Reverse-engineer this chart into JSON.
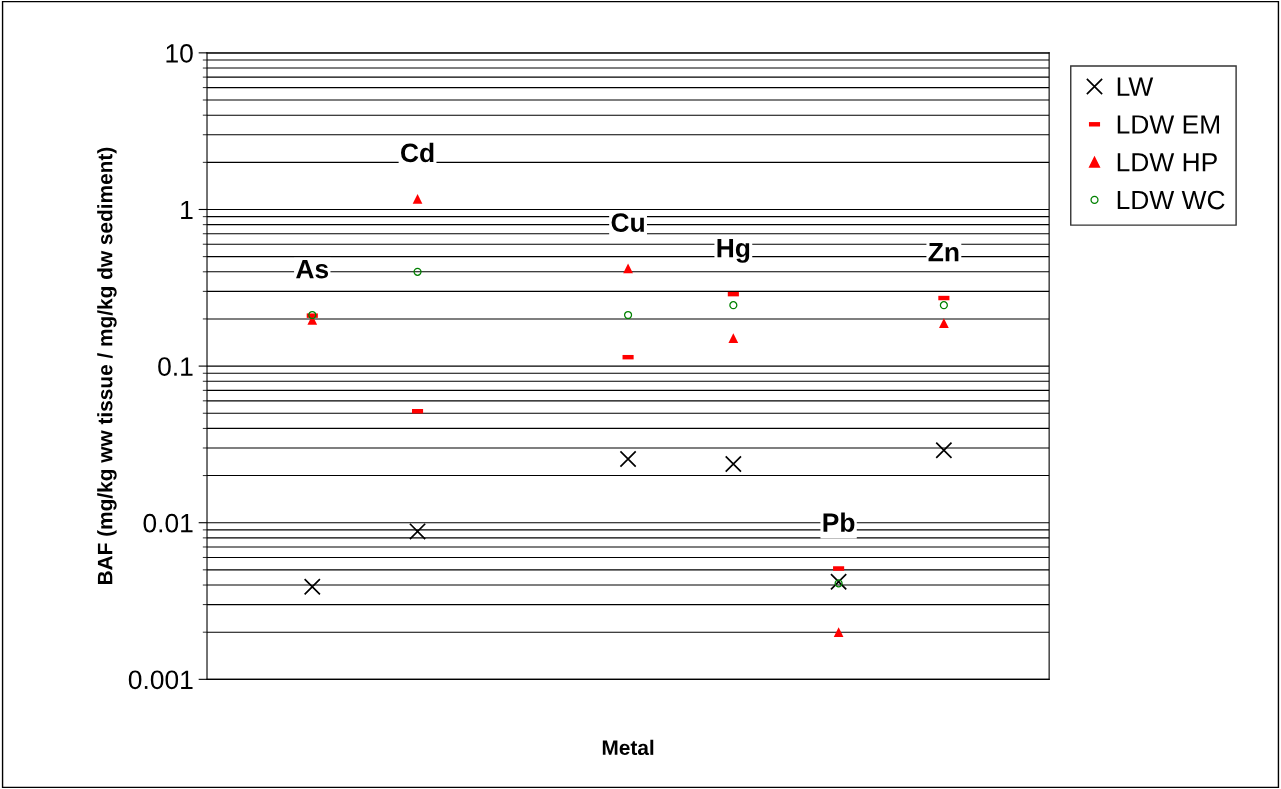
{
  "chart_data": {
    "type": "scatter",
    "xlabel": "Metal",
    "ylabel": "BAF (mg/kg ww tissue / mg/kg dw sediment)",
    "categories": [
      "As",
      "Cd",
      null,
      "Cu",
      "Hg",
      "Pb",
      "Zn"
    ],
    "series": [
      {
        "name": "LW",
        "color": "#000000",
        "marker": "cross",
        "values": [
          0.0039,
          0.0088,
          null,
          0.0255,
          0.0237,
          0.0042,
          0.029
        ]
      },
      {
        "name": "LDW EM",
        "color": "#ff0000",
        "values": [
          0.21,
          0.0515,
          null,
          0.114,
          0.288,
          0.0051,
          0.272
        ]
      },
      {
        "name": "LDW HP",
        "color": "#ff0000",
        "marker": "triangle",
        "values": [
          0.197,
          1.17,
          null,
          0.42,
          0.151,
          0.002,
          0.188
        ]
      },
      {
        "name": "LDW WC",
        "color": "#008000",
        "marker": "circle",
        "values": [
          0.212,
          0.4,
          null,
          0.212,
          0.245,
          0.0041,
          0.245
        ]
      }
    ],
    "log": "y",
    "ylim": [
      0.001,
      10
    ],
    "yticks": [
      {
        "value": 0.001,
        "label": "0.001"
      },
      {
        "value": 0.01,
        "label": "0.01"
      },
      {
        "value": 0.1,
        "label": "0.1"
      },
      1,
      10
    ],
    "grid": "y",
    "legend": "right",
    "tick_labels": "y"
  }
}
